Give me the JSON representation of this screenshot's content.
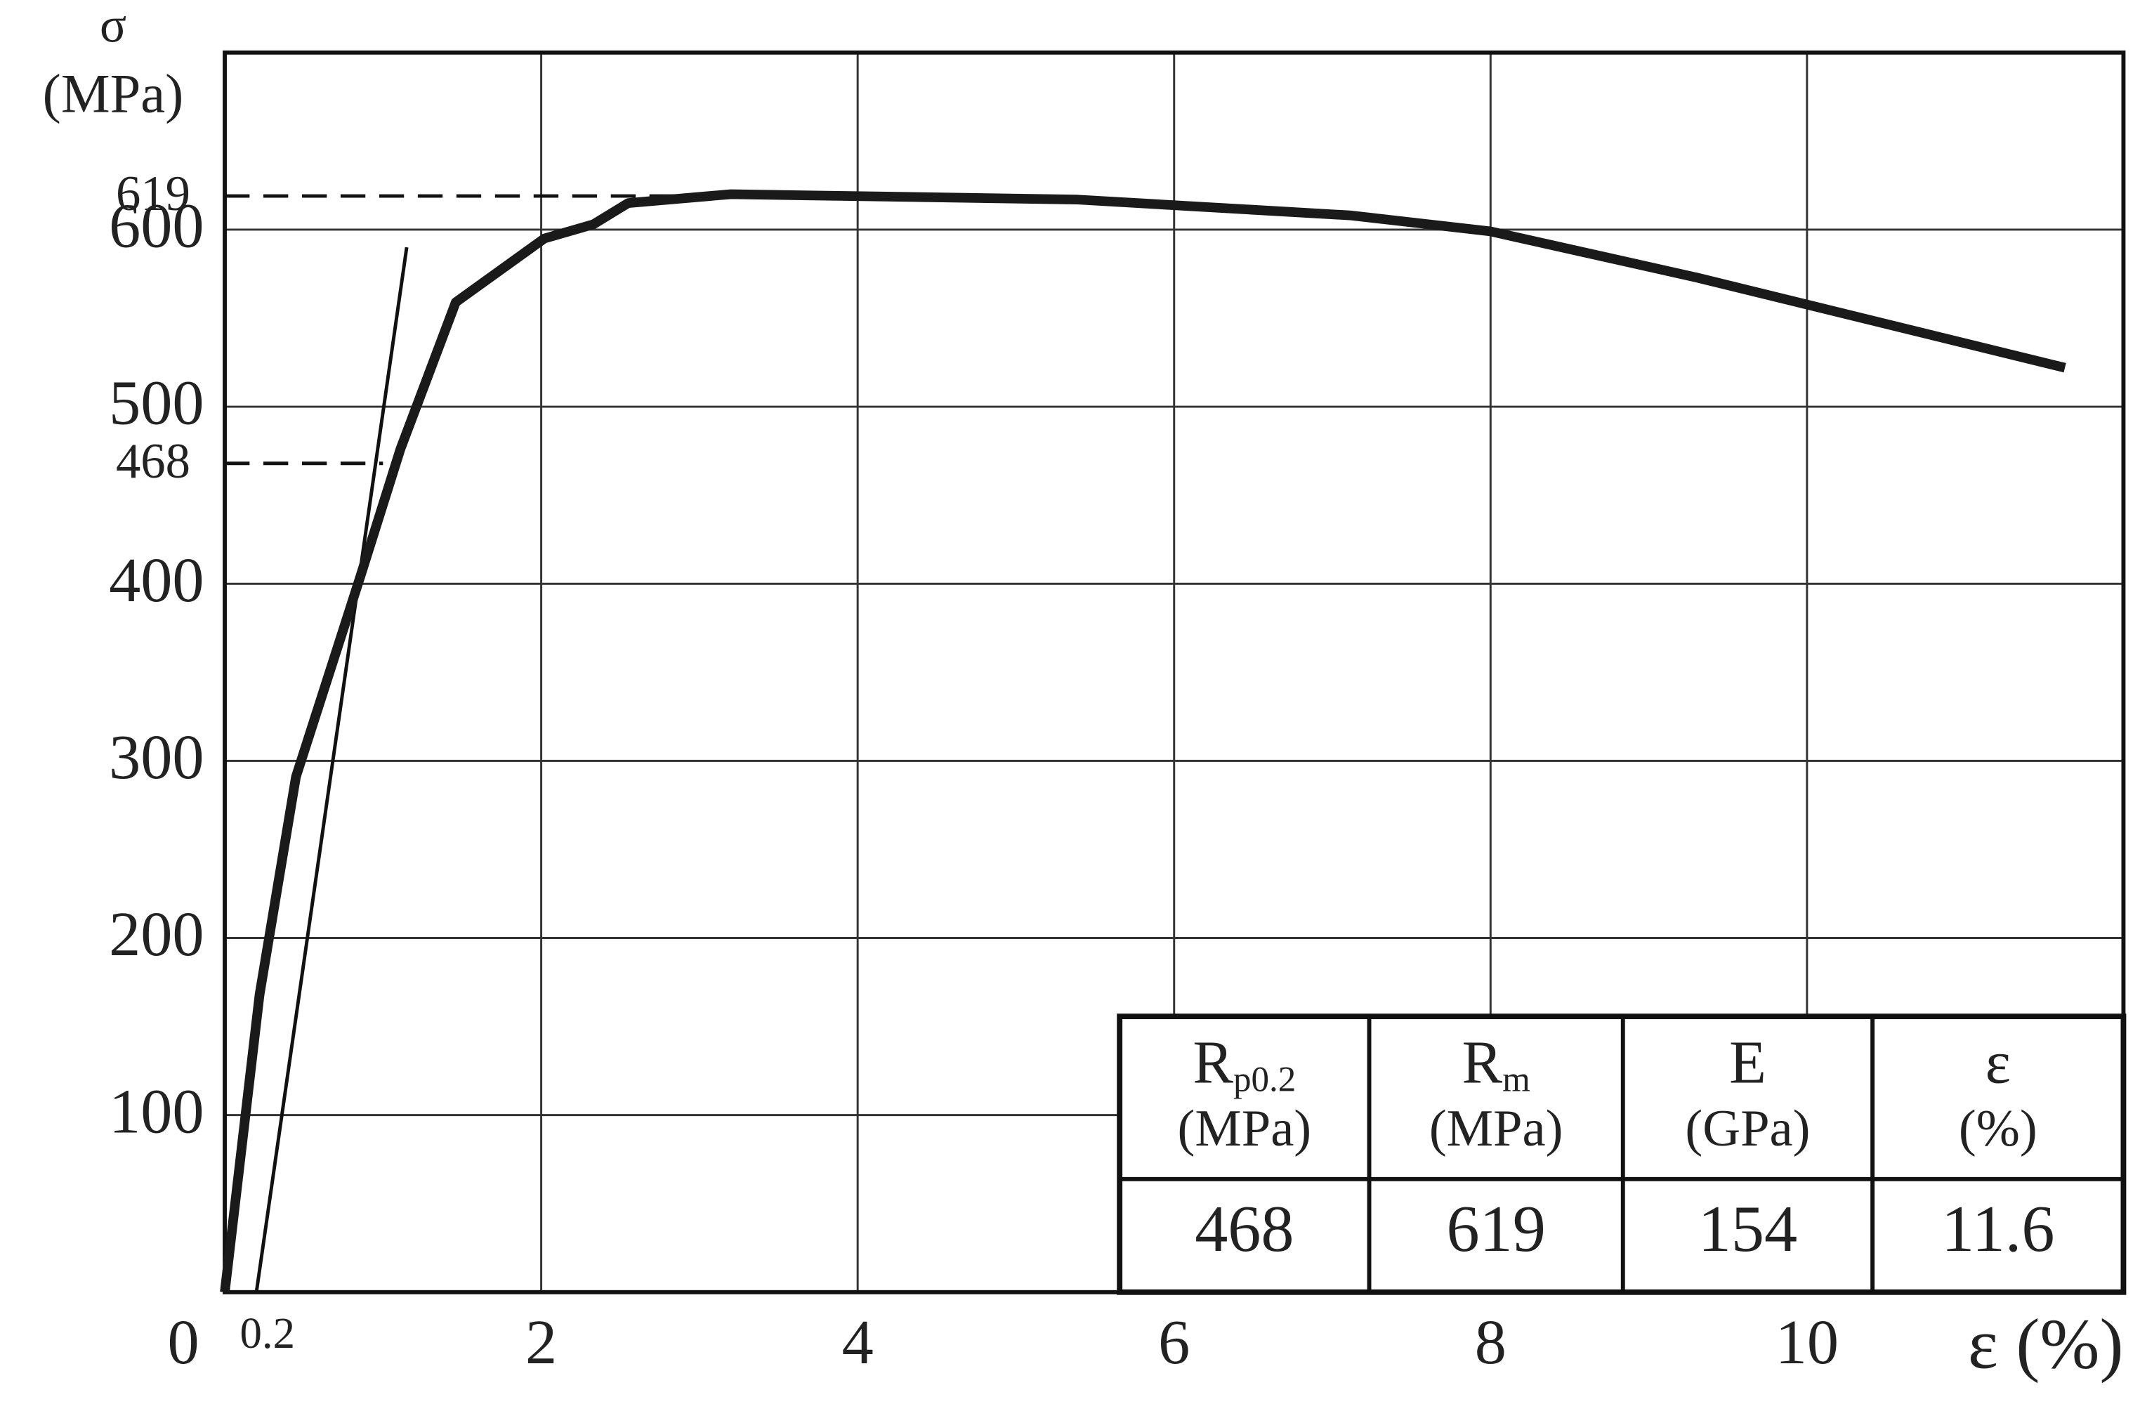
{
  "chart_data": {
    "type": "line",
    "y_label": "σ",
    "y_unit": "(MPa)",
    "x_label": "ε (%)",
    "xlim": [
      0,
      12
    ],
    "ylim": [
      0,
      700
    ],
    "xticks": [
      0,
      2,
      4,
      6,
      8,
      10
    ],
    "yticks": [
      100,
      200,
      300,
      400,
      500,
      600
    ],
    "grid": true,
    "series": [
      {
        "color": "#1a1a1a",
        "x": [
          0,
          0.22,
          0.45,
          0.86,
          1.11,
          1.46,
          2.02,
          2.33,
          2.55,
          3.2,
          5.38,
          7.12,
          8.0,
          9.3,
          11.63
        ],
        "values": [
          0,
          168,
          291,
          405,
          476,
          559,
          595,
          603,
          615,
          620,
          617,
          608,
          599,
          573,
          522
        ]
      }
    ],
    "offset_line": {
      "x": [
        0.2,
        1.15
      ],
      "y": [
        0,
        590
      ]
    },
    "reference_lines": [
      {
        "y": 619,
        "x_end": 4.2
      },
      {
        "y": 468,
        "x_end": 1.0
      }
    ],
    "table": {
      "headers": [
        {
          "symbol": "R",
          "subscript": "p0.2",
          "unit": "(MPa)"
        },
        {
          "symbol": "R",
          "subscript": "m",
          "unit": "(MPa)"
        },
        {
          "symbol": "E",
          "unit": "(GPa)"
        },
        {
          "symbol": "ε",
          "unit": "(%)"
        }
      ],
      "values": [
        468,
        619,
        154,
        11.6
      ]
    }
  }
}
